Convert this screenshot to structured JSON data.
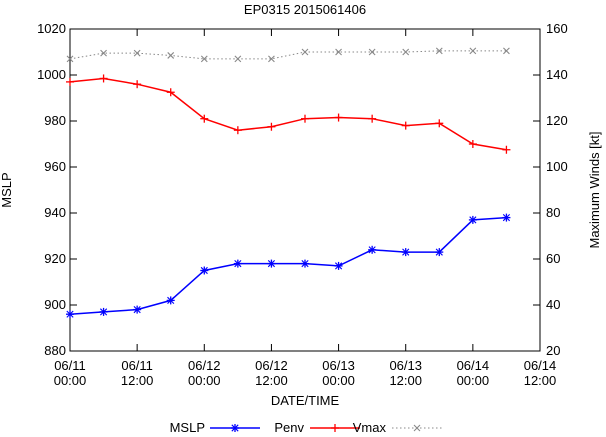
{
  "chart_data": {
    "type": "line",
    "title": "EP0315 2015061406",
    "xlabel": "DATE/TIME",
    "ylabel": "MSLP",
    "y2label": "Maximum Winds [kt]",
    "legend_position": "bottom",
    "grid": false,
    "xlim": [
      0,
      21
    ],
    "ylim": [
      880,
      1020
    ],
    "y2lim": [
      20,
      160
    ],
    "x_ticks": [
      {
        "x": 0,
        "line1": "06/11",
        "line2": "00:00"
      },
      {
        "x": 3,
        "line1": "06/11",
        "line2": "12:00"
      },
      {
        "x": 6,
        "line1": "06/12",
        "line2": "00:00"
      },
      {
        "x": 9,
        "line1": "06/12",
        "line2": "12:00"
      },
      {
        "x": 12,
        "line1": "06/13",
        "line2": "00:00"
      },
      {
        "x": 15,
        "line1": "06/13",
        "line2": "12:00"
      },
      {
        "x": 18,
        "line1": "06/14",
        "line2": "00:00"
      },
      {
        "x": 21,
        "line1": "06/14",
        "line2": "12:00"
      }
    ],
    "y_ticks": [
      880,
      900,
      920,
      940,
      960,
      980,
      1000,
      1020
    ],
    "y2_ticks": [
      20,
      40,
      60,
      80,
      100,
      120,
      140,
      160
    ],
    "x": [
      0,
      1.5,
      3,
      4.5,
      6,
      7.5,
      9,
      10.5,
      12,
      13.5,
      15,
      16.5,
      18,
      19.5
    ],
    "series": [
      {
        "name": "Penv",
        "axis": "left",
        "color": "#ff0000",
        "marker": "plus",
        "values": [
          997,
          998.5,
          996,
          992.5,
          981,
          976,
          977.5,
          981,
          981.5,
          981,
          978,
          979,
          970,
          967.5
        ]
      },
      {
        "name": "Vmax",
        "axis": "right",
        "color": "#888888",
        "marker": "x",
        "dotted": true,
        "values": [
          147,
          149.5,
          149.5,
          148.5,
          147,
          147,
          147,
          150,
          150,
          150,
          150,
          150.5,
          150.5,
          150.5
        ]
      },
      {
        "name": "MSLP",
        "axis": "left",
        "color": "#0000ff",
        "marker": "star",
        "values": [
          896,
          897,
          898,
          902,
          915,
          918,
          918,
          918,
          917,
          924,
          923,
          923,
          937,
          938
        ]
      }
    ],
    "legend": [
      {
        "label": "MSLP",
        "series": "MSLP"
      },
      {
        "label": "Penv",
        "series": "Penv"
      },
      {
        "label": "Vmax",
        "series": "Vmax"
      }
    ]
  }
}
